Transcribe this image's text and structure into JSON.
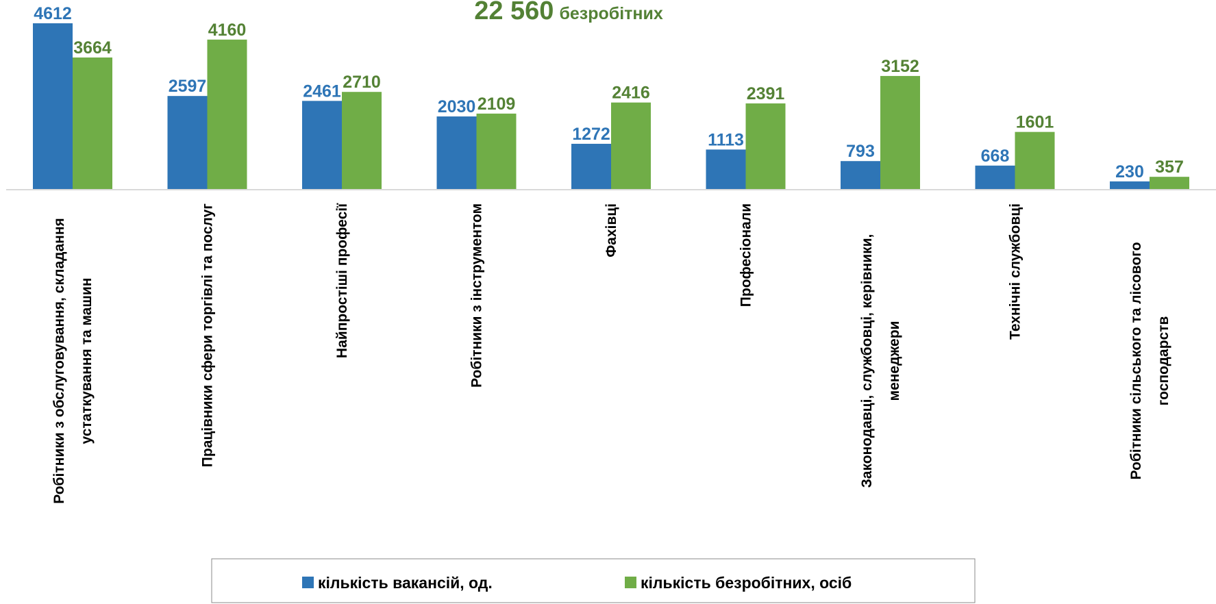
{
  "chart_data": {
    "type": "bar",
    "title": [
      "22 560",
      "безробітних"
    ],
    "categories": [
      [
        "Робітники з обслуговування, складання",
        "устаткування та машин"
      ],
      [
        "Працівники сфери торгівлі та послуг"
      ],
      [
        "Найпростіші професії"
      ],
      [
        "Робітники з інструментом"
      ],
      [
        "Фахівці"
      ],
      [
        "Професіонали"
      ],
      [
        "Законодавці, службовці, керівники,",
        "менеджери"
      ],
      [
        "Технічні службовці"
      ],
      [
        "Робітники сільського та лісового",
        "господарств"
      ]
    ],
    "series": [
      {
        "name": "кількість вакансій, од.",
        "color": "#2e75b6",
        "label_color": "#2e75b6",
        "values": [
          4612,
          2597,
          2461,
          2030,
          1272,
          1113,
          793,
          668,
          230
        ]
      },
      {
        "name": "кількість безробітних, осіб",
        "color": "#70ad47",
        "label_color": "#548235",
        "values": [
          3664,
          4160,
          2710,
          2109,
          2416,
          2391,
          3152,
          1601,
          357
        ]
      }
    ],
    "legend": "bottom"
  }
}
